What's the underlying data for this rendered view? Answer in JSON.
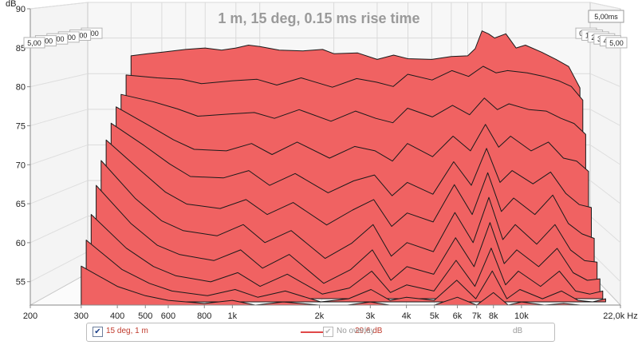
{
  "chart_data": {
    "type": "area",
    "title": "1 m, 15 deg, 0.15 ms rise time",
    "ylabel": "dB",
    "xunit": "Hz",
    "x_scale": "log",
    "xlim": [
      200,
      22000
    ],
    "ylim": [
      52,
      90
    ],
    "x_ticks": [
      "200",
      "300",
      "400",
      "500",
      "600",
      "800",
      "1k",
      "2k",
      "3k",
      "4k",
      "5k",
      "6k",
      "7k",
      "8k",
      "10k",
      "22,0k Hz"
    ],
    "y_ticks": [
      "55",
      "60",
      "65",
      "70",
      "75",
      "80",
      "85",
      "90"
    ],
    "depth_ticks": [
      "0,00",
      "1,00",
      "2,00",
      "3,00",
      "4,00",
      "5,00"
    ],
    "depth_end_label": "5,00ms",
    "grid": true,
    "fill_color": "#f06262",
    "edge_color": "#1a1a1a",
    "series": [
      {
        "time_ms": 0.0,
        "x": [
          300,
          350,
          400,
          500,
          600,
          700,
          800,
          900,
          1000,
          1200,
          1500,
          1800,
          2000,
          2500,
          3000,
          3500,
          4000,
          5000,
          6000,
          7000,
          7500,
          8000,
          8500,
          9000,
          10000,
          11000,
          12000,
          14000,
          16000,
          18000,
          20000
        ],
        "y": [
          82.5,
          82.8,
          83.0,
          83.4,
          83.6,
          83.3,
          83.6,
          84.0,
          83.8,
          83.3,
          83.2,
          83.4,
          82.8,
          82.9,
          82.0,
          82.6,
          82.1,
          82.0,
          82.4,
          82.5,
          83.5,
          86.0,
          85.6,
          85.0,
          85.6,
          83.6,
          84.0,
          83.0,
          82.0,
          81.0,
          78.0
        ]
      },
      {
        "time_ms": 0.5,
        "x": [
          300,
          400,
          500,
          600,
          800,
          1000,
          1200,
          1500,
          2000,
          2500,
          3000,
          3500,
          4000,
          5000,
          6000,
          7000,
          8000,
          9000,
          10000,
          12000,
          14000,
          16000,
          18000,
          20000
        ],
        "y": [
          80,
          79.6,
          79.4,
          78.8,
          79.2,
          79.4,
          78.6,
          79.6,
          78.3,
          79.5,
          79.0,
          78.4,
          80.1,
          79.3,
          80.6,
          79.8,
          81.2,
          80.3,
          80.6,
          80.3,
          79.8,
          79.2,
          78.4,
          76.5
        ]
      },
      {
        "time_ms": 1.0,
        "x": [
          300,
          400,
          500,
          600,
          800,
          1000,
          1200,
          1500,
          2000,
          2500,
          3000,
          3500,
          4000,
          5000,
          6000,
          7000,
          8000,
          9000,
          10000,
          12000,
          14000,
          16000,
          18000,
          20000
        ],
        "y": [
          77.5,
          76.5,
          75.5,
          74.5,
          74.8,
          75.0,
          74.2,
          75.4,
          73.8,
          75.2,
          74.2,
          73.6,
          75.6,
          74.4,
          76.0,
          74.7,
          77.0,
          75.4,
          76.2,
          75.4,
          75.2,
          74.2,
          73.5,
          72.0
        ]
      },
      {
        "time_ms": 1.5,
        "x": [
          300,
          400,
          500,
          600,
          800,
          1000,
          1200,
          1500,
          2000,
          2500,
          3000,
          3500,
          4000,
          5000,
          6000,
          7000,
          8000,
          9000,
          10000,
          12000,
          14000,
          16000,
          18000,
          20000
        ],
        "y": [
          76,
          73.5,
          71.5,
          70.2,
          70.0,
          71.0,
          69.5,
          71.2,
          69.0,
          70.6,
          70.0,
          68.6,
          71.0,
          69.2,
          72.0,
          70.0,
          73.6,
          70.5,
          72.0,
          70.0,
          71.2,
          69.0,
          68.6,
          67.2
        ]
      },
      {
        "time_ms": 2.0,
        "x": [
          300,
          400,
          500,
          600,
          800,
          1000,
          1200,
          1500,
          2000,
          2500,
          3000,
          3500,
          4000,
          5000,
          6000,
          7000,
          8000,
          9000,
          10000,
          12000,
          14000,
          16000,
          18000,
          20000
        ],
        "y": [
          74,
          71.0,
          68.5,
          66.8,
          66.6,
          67.6,
          65.6,
          67.2,
          64.6,
          66.2,
          67.0,
          64.2,
          66.0,
          64.4,
          68.8,
          65.6,
          70.6,
          66.0,
          67.6,
          65.8,
          67.4,
          64.5,
          63.0,
          62.6
        ]
      },
      {
        "time_ms": 2.5,
        "x": [
          300,
          400,
          500,
          600,
          800,
          1000,
          1200,
          1500,
          2000,
          2500,
          3000,
          3500,
          4000,
          5000,
          6000,
          7000,
          8000,
          9000,
          10000,
          12000,
          14000,
          16000,
          18000,
          20000
        ],
        "y": [
          72,
          68.0,
          65.0,
          63.4,
          62.8,
          64.0,
          62.0,
          63.6,
          60.6,
          62.6,
          64.0,
          60.4,
          62.2,
          61.0,
          66.0,
          62.0,
          67.6,
          62.4,
          64.2,
          62.0,
          64.6,
          60.8,
          59.4,
          58.8
        ]
      },
      {
        "time_ms": 3.0,
        "x": [
          300,
          400,
          500,
          600,
          800,
          1000,
          1200,
          1500,
          2000,
          2500,
          3000,
          3500,
          4000,
          5000,
          6000,
          7000,
          8000,
          9000,
          10000,
          12000,
          14000,
          16000,
          18000,
          20000
        ],
        "y": [
          69.5,
          64.5,
          61.5,
          60.2,
          59.5,
          61.0,
          58.6,
          60.2,
          56.5,
          58.5,
          61.0,
          56.8,
          58.6,
          57.4,
          62.6,
          58.6,
          64.6,
          59.0,
          61.0,
          58.4,
          61.0,
          57.6,
          56.2,
          56.0
        ]
      },
      {
        "time_ms": 3.5,
        "x": [
          300,
          400,
          500,
          600,
          800,
          1000,
          1200,
          1500,
          2000,
          2500,
          3000,
          3500,
          4000,
          5000,
          6000,
          7000,
          8000,
          9000,
          10000,
          12000,
          14000,
          16000,
          18000,
          20000
        ],
        "y": [
          66.5,
          61.5,
          58.6,
          57.4,
          56.6,
          58.0,
          55.6,
          57.4,
          53.6,
          55.4,
          58.0,
          54.0,
          55.8,
          54.8,
          59.6,
          55.8,
          61.6,
          56.2,
          58.0,
          55.8,
          58.2,
          55.0,
          54.0,
          54.2
        ]
      },
      {
        "time_ms": 4.0,
        "x": [
          300,
          400,
          500,
          600,
          800,
          1000,
          1200,
          1500,
          2000,
          2500,
          3000,
          3500,
          4000,
          5000,
          6000,
          7000,
          8000,
          9000,
          10000,
          12000,
          14000,
          16000,
          18000,
          20000
        ],
        "y": [
          63.0,
          58.6,
          56.2,
          55.0,
          54.2,
          55.4,
          53.6,
          55.2,
          52.6,
          53.4,
          55.6,
          52.8,
          53.8,
          53.0,
          57.0,
          53.6,
          58.6,
          53.8,
          55.6,
          53.6,
          55.6,
          53.0,
          52.6,
          53.0
        ]
      },
      {
        "time_ms": 4.5,
        "x": [
          300,
          400,
          500,
          600,
          800,
          1000,
          1200,
          1500,
          2000,
          2500,
          3000,
          3500,
          4000,
          5000,
          6000,
          7000,
          8000,
          9000,
          10000,
          12000,
          14000,
          16000,
          18000,
          20000
        ],
        "y": [
          60.0,
          56.2,
          54.4,
          53.4,
          52.8,
          53.6,
          52.6,
          53.4,
          52.0,
          52.4,
          53.6,
          52.2,
          52.6,
          52.2,
          54.8,
          52.4,
          56.0,
          52.4,
          53.6,
          52.4,
          53.4,
          52.2,
          52.0,
          52.4
        ]
      },
      {
        "time_ms": 5.0,
        "x": [
          300,
          400,
          500,
          600,
          800,
          1000,
          1200,
          1500,
          2000,
          2500,
          3000,
          3500,
          4000,
          5000,
          6000,
          7000,
          8000,
          9000,
          10000,
          12000,
          14000,
          16000,
          18000,
          20000
        ],
        "y": [
          57.0,
          54.4,
          53.2,
          52.6,
          52.2,
          52.6,
          52.0,
          52.4,
          52.0,
          52.0,
          52.4,
          52.0,
          52.0,
          52.0,
          53.0,
          52.0,
          53.6,
          52.0,
          52.4,
          52.0,
          52.2,
          52.0,
          52.0,
          52.0
        ]
      }
    ]
  },
  "legend": {
    "item1_label": "15 deg, 1 m",
    "item1_checked": "✔",
    "item1_value": "29,6 dB",
    "item2_label": "No overlay",
    "item2_checked": "✔",
    "item2_unit": "dB"
  }
}
